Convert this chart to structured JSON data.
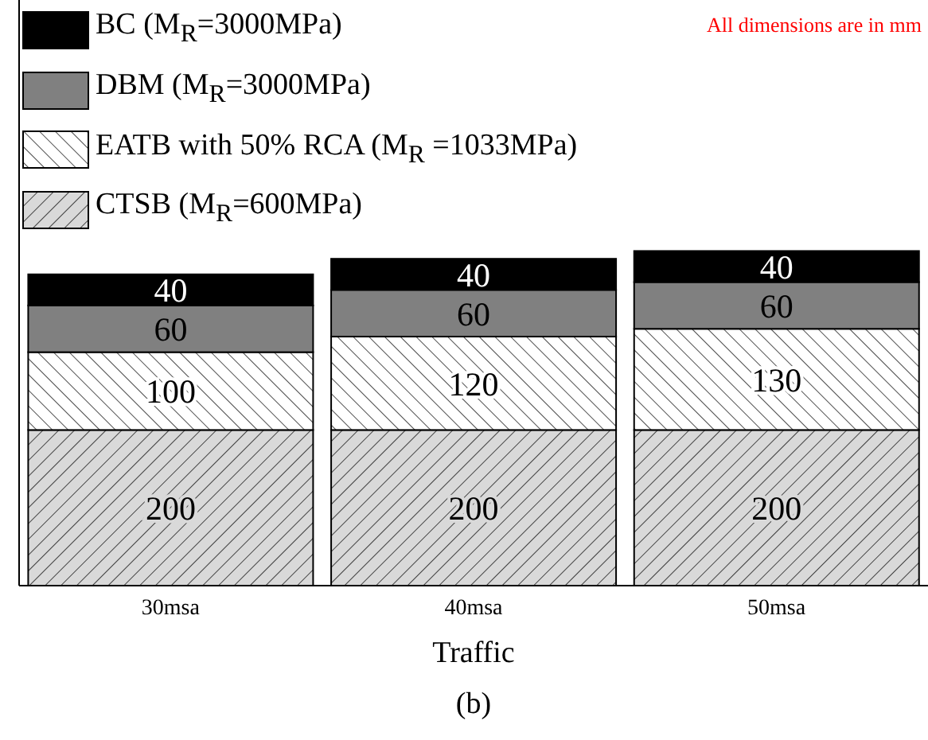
{
  "chart_data": {
    "type": "bar",
    "stacked": true,
    "categories": [
      "30msa",
      "40msa",
      "50msa"
    ],
    "series": [
      {
        "name": "CTSB (M$_{R}$=600MPa)",
        "color": "#d9d9d9",
        "values": [
          200,
          200,
          200
        ]
      },
      {
        "name": "EATB with 50% RCA (M$_{R}$ =1033MPa)",
        "color": "#ffffff",
        "values": [
          100,
          120,
          130
        ]
      },
      {
        "name": "DBM (M$_{R}$=3000MPa)",
        "color": "#808080",
        "values": [
          60,
          60,
          60
        ]
      },
      {
        "name": "BC (M$_{R}$=3000MPa)",
        "color": "#000000",
        "values": [
          40,
          40,
          40
        ]
      }
    ],
    "data_labels": true,
    "relative": false,
    "legend": "top left",
    "grid": false,
    "xlabel": "Traffic",
    "annotations": [
      "All dimensions are in mm",
      "(b)"
    ]
  }
}
